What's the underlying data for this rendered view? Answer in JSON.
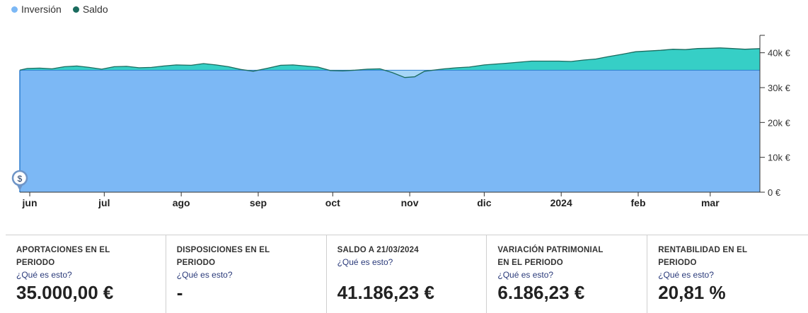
{
  "legend": [
    {
      "label": "Inversión",
      "color": "#7cb8f5"
    },
    {
      "label": "Saldo",
      "color": "#1a6b5e"
    }
  ],
  "chart_data": {
    "type": "area",
    "title": "",
    "xlabel": "",
    "ylabel": "",
    "ylim": [
      0,
      45000
    ],
    "ytick_values": [
      0,
      10000,
      20000,
      30000,
      40000
    ],
    "ytick_labels": [
      "0 €",
      "10k €",
      "20k €",
      "30k €",
      "40k €"
    ],
    "xaxis_range": [
      "2023-05-28",
      "2024-03-21"
    ],
    "xtick_dates": [
      "2023-06-01",
      "2023-07-01",
      "2023-08-01",
      "2023-09-01",
      "2023-10-01",
      "2023-11-01",
      "2023-12-01",
      "2024-01-01",
      "2024-02-01",
      "2024-03-01"
    ],
    "xtick_labels": [
      "jun",
      "jul",
      "ago",
      "sep",
      "oct",
      "nov",
      "dic",
      "2024",
      "feb",
      "mar"
    ],
    "grid": false,
    "legend_position": "top-left",
    "colors": {
      "inversion": "#7cb8f5",
      "saldo_fill": "#36cfc6",
      "line": "#1a6b5e",
      "saldo_below": "#a6d6f7"
    },
    "marker": {
      "label": "$",
      "date": "2023-05-28"
    },
    "series": [
      {
        "name": "Inversión",
        "points": [
          [
            "2023-05-28",
            35000
          ],
          [
            "2024-03-21",
            35000
          ]
        ]
      },
      {
        "name": "Saldo",
        "points": [
          [
            "2023-05-28",
            35000
          ],
          [
            "2023-05-31",
            35500
          ],
          [
            "2023-06-05",
            35600
          ],
          [
            "2023-06-10",
            35400
          ],
          [
            "2023-06-15",
            36000
          ],
          [
            "2023-06-20",
            36200
          ],
          [
            "2023-06-25",
            35800
          ],
          [
            "2023-06-30",
            35300
          ],
          [
            "2023-07-05",
            36000
          ],
          [
            "2023-07-10",
            36100
          ],
          [
            "2023-07-15",
            35700
          ],
          [
            "2023-07-20",
            35800
          ],
          [
            "2023-07-25",
            36200
          ],
          [
            "2023-07-30",
            36500
          ],
          [
            "2023-08-05",
            36400
          ],
          [
            "2023-08-10",
            36900
          ],
          [
            "2023-08-15",
            36500
          ],
          [
            "2023-08-20",
            36000
          ],
          [
            "2023-08-25",
            35200
          ],
          [
            "2023-08-30",
            34700
          ],
          [
            "2023-09-05",
            35600
          ],
          [
            "2023-09-10",
            36400
          ],
          [
            "2023-09-15",
            36500
          ],
          [
            "2023-09-20",
            36200
          ],
          [
            "2023-09-25",
            35900
          ],
          [
            "2023-09-30",
            34900
          ],
          [
            "2023-10-05",
            34800
          ],
          [
            "2023-10-10",
            35000
          ],
          [
            "2023-10-15",
            35300
          ],
          [
            "2023-10-20",
            35400
          ],
          [
            "2023-10-25",
            34300
          ],
          [
            "2023-10-30",
            32900
          ],
          [
            "2023-11-03",
            33100
          ],
          [
            "2023-11-07",
            34700
          ],
          [
            "2023-11-15",
            35400
          ],
          [
            "2023-11-20",
            35700
          ],
          [
            "2023-11-25",
            35900
          ],
          [
            "2023-12-01",
            36500
          ],
          [
            "2023-12-10",
            37000
          ],
          [
            "2023-12-15",
            37300
          ],
          [
            "2023-12-20",
            37600
          ],
          [
            "2023-12-31",
            37600
          ],
          [
            "2024-01-05",
            37500
          ],
          [
            "2024-01-10",
            37900
          ],
          [
            "2024-01-15",
            38200
          ],
          [
            "2024-01-20",
            38900
          ],
          [
            "2024-01-25",
            39500
          ],
          [
            "2024-01-31",
            40300
          ],
          [
            "2024-02-05",
            40500
          ],
          [
            "2024-02-10",
            40700
          ],
          [
            "2024-02-15",
            41000
          ],
          [
            "2024-02-20",
            40900
          ],
          [
            "2024-02-25",
            41200
          ],
          [
            "2024-03-01",
            41300
          ],
          [
            "2024-03-05",
            41400
          ],
          [
            "2024-03-10",
            41200
          ],
          [
            "2024-03-15",
            41000
          ],
          [
            "2024-03-21",
            41186.23
          ]
        ]
      }
    ]
  },
  "stats": [
    {
      "label": "APORTACIONES EN EL PERIODO",
      "help": "¿Qué es esto?",
      "value": "35.000,00 €"
    },
    {
      "label": "DISPOSICIONES EN EL PERIODO",
      "help": "¿Qué es esto?",
      "value": "-"
    },
    {
      "label": "SALDO A 21/03/2024",
      "help": "¿Qué es esto?",
      "value": "41.186,23 €"
    },
    {
      "label": "VARIACIÓN PATRIMONIAL EN EL PERIODO",
      "help": "¿Qué es esto?",
      "value": "6.186,23 €"
    },
    {
      "label": "RENTABILIDAD EN EL PERIODO",
      "help": "¿Qué es esto?",
      "value": "20,81 %"
    }
  ]
}
